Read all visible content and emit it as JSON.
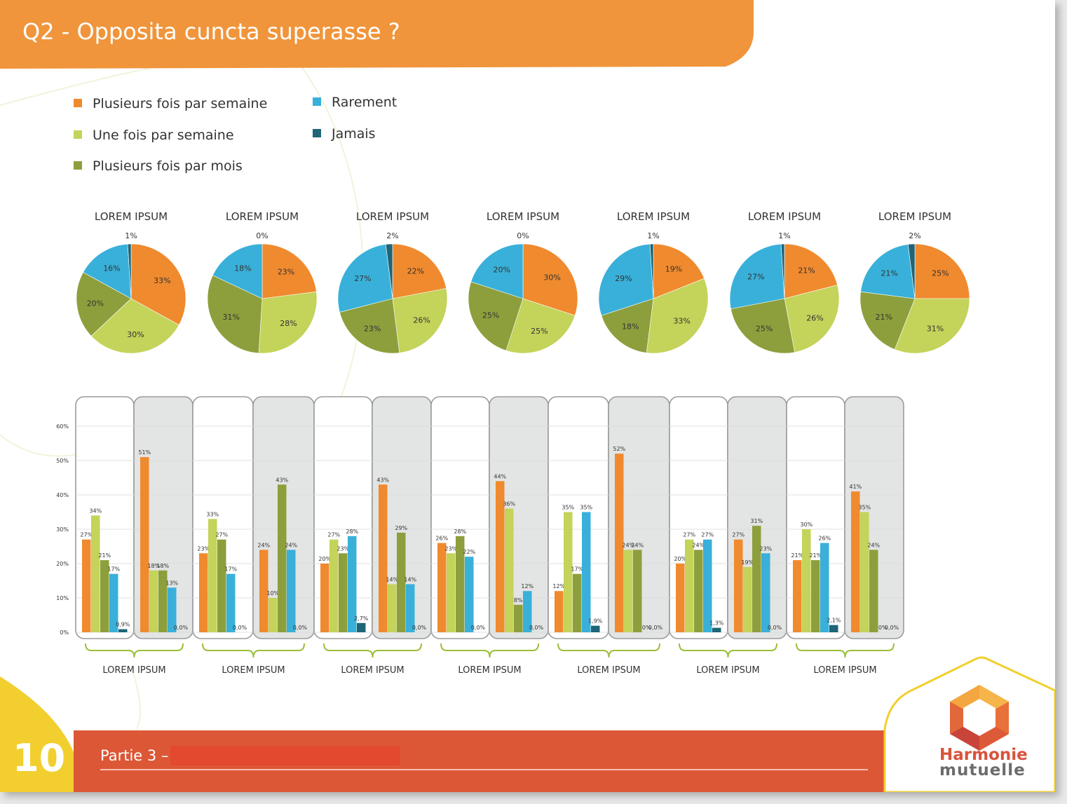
{
  "header": {
    "title": "Q2 - Opposita cuncta superasse ?"
  },
  "legend": [
    {
      "label": "Plusieurs fois par semaine",
      "color": "#f08a2e"
    },
    {
      "label": "Une fois par semaine",
      "color": "#c4d35a"
    },
    {
      "label": "Plusieurs fois par mois",
      "color": "#8d9f3c"
    },
    {
      "label": "Rarement",
      "color": "#39b0d9"
    },
    {
      "label": "Jamais",
      "color": "#1f6577"
    }
  ],
  "chart_data": [
    {
      "type": "pie",
      "pies": [
        {
          "title": "LOREM IPSUM",
          "values": [
            33,
            30,
            20,
            16,
            1
          ]
        },
        {
          "title": "LOREM IPSUM",
          "values": [
            23,
            28,
            31,
            18,
            0
          ]
        },
        {
          "title": "LOREM IPSUM",
          "values": [
            22,
            26,
            23,
            27,
            2
          ]
        },
        {
          "title": "LOREM IPSUM",
          "values": [
            30,
            25,
            25,
            20,
            0
          ]
        },
        {
          "title": "LOREM IPSUM",
          "values": [
            19,
            33,
            18,
            29,
            1
          ]
        },
        {
          "title": "LOREM IPSUM",
          "values": [
            21,
            26,
            25,
            27,
            1
          ]
        },
        {
          "title": "LOREM IPSUM",
          "values": [
            25,
            31,
            21,
            21,
            2
          ]
        }
      ]
    },
    {
      "type": "bar",
      "y_ticks": [
        "0%",
        "10%",
        "20%",
        "30%",
        "40%",
        "50%",
        "60%"
      ],
      "ylim": [
        0,
        60
      ],
      "groups": [
        {
          "label": "LOREM IPSUM",
          "panels": [
            {
              "values": [
                27,
                34,
                21,
                17,
                0.9
              ],
              "labels": [
                "27%",
                "34%",
                "21%",
                "17%",
                "0,9%"
              ]
            },
            {
              "values": [
                51,
                18,
                18,
                13,
                0
              ],
              "labels": [
                "51%",
                "18%",
                "18%",
                "13%",
                "0,0%"
              ]
            }
          ]
        },
        {
          "label": "LOREM IPSUM",
          "panels": [
            {
              "values": [
                23,
                33,
                27,
                17,
                0
              ],
              "labels": [
                "23%",
                "33%",
                "27%",
                "17%",
                "0,0%"
              ]
            },
            {
              "values": [
                24,
                10,
                43,
                24,
                0
              ],
              "labels": [
                "24%",
                "10%",
                "43%",
                "24%",
                "0,0%"
              ]
            }
          ]
        },
        {
          "label": "LOREM IPSUM",
          "panels": [
            {
              "values": [
                20,
                27,
                23,
                28,
                2.7
              ],
              "labels": [
                "20%",
                "27%",
                "23%",
                "28%",
                "2,7%"
              ]
            },
            {
              "values": [
                43,
                14,
                29,
                14,
                0
              ],
              "labels": [
                "43%",
                "14%",
                "29%",
                "14%",
                "0,0%"
              ]
            }
          ]
        },
        {
          "label": "LOREM IPSUM",
          "panels": [
            {
              "values": [
                26,
                23,
                28,
                22,
                0
              ],
              "labels": [
                "26%",
                "23%",
                "28%",
                "22%",
                "0,0%"
              ]
            },
            {
              "values": [
                44,
                36,
                8,
                12,
                0
              ],
              "labels": [
                "44%",
                "36%",
                "8%",
                "12%",
                "0,0%"
              ]
            }
          ]
        },
        {
          "label": "LOREM IPSUM",
          "panels": [
            {
              "values": [
                12,
                35,
                17,
                35,
                1.9
              ],
              "labels": [
                "12%",
                "35%",
                "17%",
                "35%",
                "1,9%"
              ]
            },
            {
              "values": [
                52,
                24,
                24,
                0,
                0
              ],
              "labels": [
                "52%",
                "24%",
                "24%",
                "0%",
                "0,0%"
              ]
            }
          ]
        },
        {
          "label": "LOREM IPSUM",
          "panels": [
            {
              "values": [
                20,
                27,
                24,
                27,
                1.3
              ],
              "labels": [
                "20%",
                "27%",
                "24%",
                "27%",
                "1,3%"
              ]
            },
            {
              "values": [
                27,
                19,
                31,
                23,
                0
              ],
              "labels": [
                "27%",
                "19%",
                "31%",
                "23%",
                "0,0%"
              ]
            }
          ]
        },
        {
          "label": "LOREM IPSUM",
          "panels": [
            {
              "values": [
                21,
                30,
                21,
                26,
                2.1
              ],
              "labels": [
                "21%",
                "30%",
                "21%",
                "26%",
                "2,1%"
              ]
            },
            {
              "values": [
                41,
                35,
                24,
                0,
                0
              ],
              "labels": [
                "41%",
                "35%",
                "24%",
                "0%",
                "0,0%"
              ]
            }
          ]
        }
      ]
    }
  ],
  "footer": {
    "section": "Partie 3 –",
    "page_number": "10"
  },
  "logo": {
    "line1": "Harmonie",
    "line2": "mutuelle"
  }
}
